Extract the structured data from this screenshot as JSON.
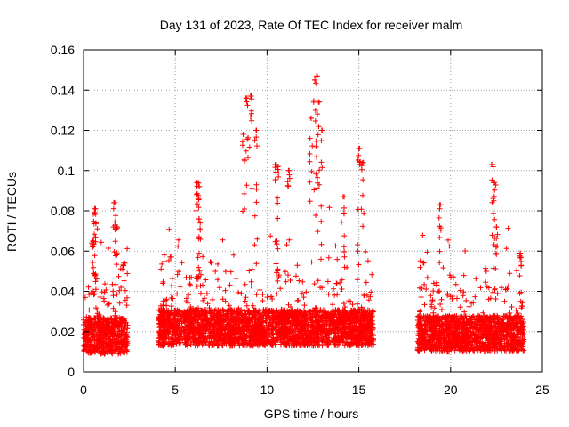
{
  "chart_data": {
    "type": "scatter",
    "title": "Day 131 of 2023, Rate Of TEC Index for receiver malm",
    "xlabel": "GPS time / hours",
    "ylabel": "ROTI / TECUs",
    "xlim": [
      0,
      25
    ],
    "ylim": [
      0,
      0.16
    ],
    "xticks": [
      0,
      5,
      10,
      15,
      20,
      25
    ],
    "yticks": [
      0,
      0.02,
      0.04,
      0.06,
      0.08,
      0.1,
      0.12,
      0.14,
      0.16
    ],
    "xtick_labels": [
      "0",
      "5",
      "10",
      "15",
      "20",
      "25"
    ],
    "ytick_labels": [
      "0",
      "0.02",
      "0.04",
      "0.06",
      "0.08",
      "0.1",
      "0.12",
      "0.14",
      "0.16"
    ],
    "grid": true,
    "legend": "none",
    "marker": "+",
    "color": "#ff0000",
    "series": [
      {
        "segments": [
          {
            "x_start": 0.0,
            "x_end": 2.4,
            "y_base": 0.018
          },
          {
            "x_start": 4.1,
            "x_end": 15.8,
            "y_base": 0.022
          },
          {
            "x_start": 18.2,
            "x_end": 24.0,
            "y_base": 0.019
          }
        ],
        "x": [
          0.5,
          0.6,
          0.6,
          1.7,
          1.8,
          2.2,
          6.2,
          6.3,
          6.3,
          8.7,
          8.9,
          9.1,
          9.4,
          10.5,
          10.6,
          11.2,
          12.4,
          12.6,
          12.7,
          12.8,
          13.0,
          14.2,
          15.0,
          15.2,
          19.4,
          22.3,
          22.4,
          22.5,
          23.8
        ],
        "y": [
          0.065,
          0.079,
          0.081,
          0.084,
          0.072,
          0.054,
          0.094,
          0.092,
          0.076,
          0.118,
          0.136,
          0.137,
          0.12,
          0.103,
          0.102,
          0.1,
          0.126,
          0.145,
          0.147,
          0.134,
          0.12,
          0.087,
          0.111,
          0.104,
          0.083,
          0.103,
          0.094,
          0.072,
          0.059
        ]
      }
    ]
  }
}
